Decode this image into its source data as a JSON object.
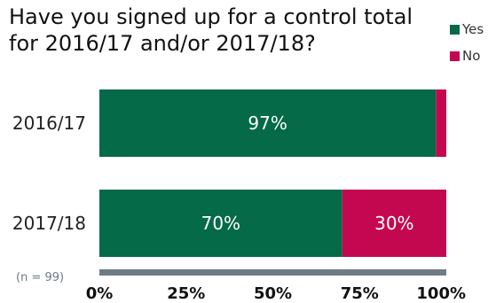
{
  "chart_data": {
    "type": "bar",
    "orientation": "horizontal",
    "stacked": true,
    "title": "Have you signed up for a control total for 2016/17 and/or 2017/18?",
    "categories": [
      "2016/17",
      "2017/18"
    ],
    "series": [
      {
        "name": "Yes",
        "values": [
          97,
          70
        ],
        "color": "#046a47",
        "labels": [
          "97%",
          "70%"
        ]
      },
      {
        "name": "No",
        "values": [
          3,
          30
        ],
        "color": "#c4084f",
        "labels": [
          "",
          "30%"
        ]
      }
    ],
    "xlim": [
      0,
      100
    ],
    "xticks": [
      "0%",
      "25%",
      "50%",
      "75%",
      "100%"
    ],
    "xlabel": "",
    "ylabel": "",
    "legend_position": "top-right",
    "grid": false,
    "axis_color": "#6f7b86",
    "note": "(n = 99)"
  }
}
